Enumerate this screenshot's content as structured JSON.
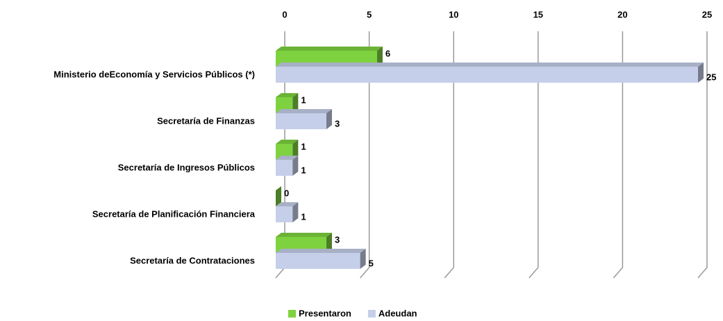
{
  "chart_data": {
    "type": "bar",
    "orientation": "horizontal",
    "categories": [
      "Ministerio deEconomía y Servicios Públicos (*)",
      "Secretaría de Finanzas",
      "Secretaría de Ingresos Públicos",
      "Secretaría de Planificación Financiera",
      "Secretaría de Contrataciones"
    ],
    "series": [
      {
        "name": "Presentaron",
        "color": "#7ed23f",
        "values": [
          6,
          1,
          1,
          0,
          3
        ]
      },
      {
        "name": "Adeudan",
        "color": "#c6cfe9",
        "values": [
          25,
          3,
          1,
          1,
          5
        ]
      }
    ],
    "xlim": [
      0,
      25
    ],
    "xticks": [
      0,
      5,
      10,
      15,
      20,
      25
    ],
    "grid": true,
    "legend": "bottom"
  }
}
